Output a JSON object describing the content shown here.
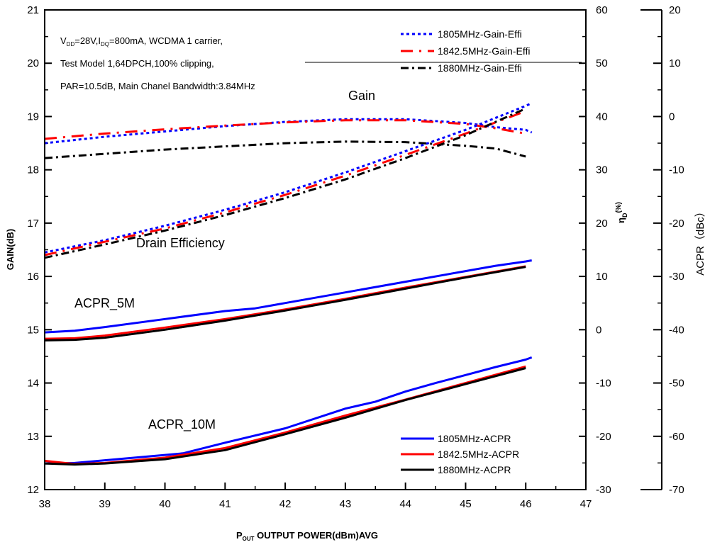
{
  "chart_data": {
    "type": "line",
    "notes": {
      "line1_pre": "V",
      "line1_sub1": "DD",
      "line1_mid": "=28V,I",
      "line1_sub2": "DQ",
      "line1_post": "=800mA, WCDMA 1 carrier,",
      "line2": "Test Model 1,64DPCH,100% clipping,",
      "line3": "PAR=10.5dB, Main Chanel Bandwidth:3.84MHz"
    },
    "annotations": {
      "gain": "Gain",
      "efficiency": "Drain Efficiency",
      "acpr5": "ACPR_5M",
      "acpr10": "ACPR_10M"
    },
    "x_axis": {
      "label_main": "P",
      "label_sub": "OUT",
      "label_rest": " OUTPUT POWER(dBm)AVG",
      "min": 38,
      "max": 47,
      "ticks": [
        "38",
        "39",
        "40",
        "41",
        "42",
        "43",
        "44",
        "45",
        "46",
        "47"
      ]
    },
    "y_left": {
      "label": "GAIN(dB)",
      "min": 12,
      "max": 21,
      "ticks": [
        "12",
        "13",
        "14",
        "15",
        "16",
        "17",
        "18",
        "19",
        "20",
        "21"
      ]
    },
    "y_right1": {
      "label_main": "η",
      "label_sub": "D",
      "label_sup": "(%)",
      "min": -30,
      "max": 60,
      "ticks": [
        "-30",
        "-20",
        "-10",
        "0",
        "10",
        "20",
        "30",
        "40",
        "50",
        "60"
      ]
    },
    "y_right2": {
      "label": "ACPR（dBc）",
      "min": -70,
      "max": 20,
      "ticks": [
        "-70",
        "-60",
        "-50",
        "-40",
        "-30",
        "-20",
        "-10",
        "0",
        "10",
        "20"
      ]
    },
    "legend_top": [
      {
        "name": "1805MHz-Gain-Effi",
        "color": "#0000ff",
        "dash": "dot"
      },
      {
        "name": "1842.5MHz-Gain-Effi",
        "color": "#ff0000",
        "dash": "longdash"
      },
      {
        "name": "1880MHz-Gain-Effi",
        "color": "#000000",
        "dash": "dashdot"
      }
    ],
    "legend_bottom": [
      {
        "name": "1805MHz-ACPR",
        "color": "#0000ff"
      },
      {
        "name": "1842.5MHz-ACPR",
        "color": "#ff0000"
      },
      {
        "name": "1880MHz-ACPR",
        "color": "#000000"
      }
    ],
    "series": [
      {
        "group": "gain",
        "legend": "1805MHz-Gain-Effi",
        "axis": "left",
        "color": "#0000ff",
        "dash": "dot",
        "points": [
          [
            38,
            18.5
          ],
          [
            39,
            18.62
          ],
          [
            40,
            18.72
          ],
          [
            41,
            18.82
          ],
          [
            42,
            18.9
          ],
          [
            43,
            18.95
          ],
          [
            44,
            18.95
          ],
          [
            45,
            18.88
          ],
          [
            45.5,
            18.8
          ],
          [
            46,
            18.75
          ],
          [
            46.1,
            18.7
          ]
        ]
      },
      {
        "group": "gain",
        "legend": "1842.5MHz-Gain-Effi",
        "axis": "left",
        "color": "#ff0000",
        "dash": "longdash",
        "points": [
          [
            38,
            18.58
          ],
          [
            39,
            18.68
          ],
          [
            40,
            18.76
          ],
          [
            41,
            18.83
          ],
          [
            42,
            18.89
          ],
          [
            43,
            18.93
          ],
          [
            44,
            18.93
          ],
          [
            45,
            18.86
          ],
          [
            45.5,
            18.78
          ],
          [
            46,
            18.68
          ]
        ]
      },
      {
        "group": "gain",
        "legend": "1880MHz-Gain-Effi",
        "axis": "left",
        "color": "#000000",
        "dash": "dashdot",
        "points": [
          [
            38,
            18.22
          ],
          [
            39,
            18.3
          ],
          [
            40,
            18.38
          ],
          [
            41,
            18.44
          ],
          [
            42,
            18.5
          ],
          [
            43,
            18.53
          ],
          [
            44,
            18.52
          ],
          [
            45,
            18.45
          ],
          [
            45.5,
            18.4
          ],
          [
            46,
            18.25
          ]
        ]
      },
      {
        "group": "eff",
        "legend": "1805MHz-Gain-Effi",
        "axis": "right1",
        "color": "#0000ff",
        "dash": "dot",
        "points": [
          [
            38,
            14.5
          ],
          [
            39,
            16.8
          ],
          [
            40,
            19.5
          ],
          [
            41,
            22.5
          ],
          [
            42,
            25.8
          ],
          [
            43,
            29.5
          ],
          [
            44,
            33.5
          ],
          [
            45,
            37.5
          ],
          [
            46,
            42
          ],
          [
            46.1,
            42.5
          ]
        ]
      },
      {
        "group": "eff",
        "legend": "1842.5MHz-Gain-Effi",
        "axis": "right1",
        "color": "#ff0000",
        "dash": "longdash",
        "points": [
          [
            38,
            14
          ],
          [
            39,
            16.5
          ],
          [
            40,
            19
          ],
          [
            41,
            22
          ],
          [
            42,
            25.3
          ],
          [
            43,
            28.9
          ],
          [
            44,
            32.8
          ],
          [
            45,
            36.8
          ],
          [
            46,
            41
          ]
        ]
      },
      {
        "group": "eff",
        "legend": "1880MHz-Gain-Effi",
        "axis": "right1",
        "color": "#000000",
        "dash": "dashdot",
        "points": [
          [
            38,
            13.5
          ],
          [
            39,
            16
          ],
          [
            40,
            18.6
          ],
          [
            41,
            21.5
          ],
          [
            42,
            24.7
          ],
          [
            43,
            28.2
          ],
          [
            44,
            32.2
          ],
          [
            45,
            36.5
          ],
          [
            46,
            41.5
          ]
        ]
      },
      {
        "group": "acpr5",
        "legend": "1805MHz-ACPR",
        "axis": "right2",
        "color": "#0000ff",
        "dash": "solid",
        "points": [
          [
            38,
            -40.5
          ],
          [
            38.5,
            -40.2
          ],
          [
            39,
            -39.5
          ],
          [
            40,
            -38
          ],
          [
            41,
            -36.5
          ],
          [
            41.5,
            -36
          ],
          [
            42,
            -35
          ],
          [
            42.5,
            -34
          ],
          [
            43,
            -33
          ],
          [
            44,
            -31
          ],
          [
            45,
            -29
          ],
          [
            45.5,
            -28
          ],
          [
            46,
            -27.2
          ],
          [
            46.1,
            -27
          ]
        ]
      },
      {
        "group": "acpr5",
        "legend": "1842.5MHz-ACPR",
        "axis": "right2",
        "color": "#ff0000",
        "dash": "solid",
        "points": [
          [
            38,
            -41.7
          ],
          [
            38.5,
            -41.6
          ],
          [
            39,
            -41.1
          ],
          [
            40,
            -39.6
          ],
          [
            41,
            -38
          ],
          [
            42,
            -36.2
          ],
          [
            43,
            -34.2
          ],
          [
            44,
            -32.1
          ],
          [
            45,
            -30.1
          ],
          [
            46,
            -28.1
          ]
        ]
      },
      {
        "group": "acpr5",
        "legend": "1880MHz-ACPR",
        "axis": "right2",
        "color": "#000000",
        "dash": "solid",
        "points": [
          [
            38,
            -42
          ],
          [
            38.5,
            -41.9
          ],
          [
            39,
            -41.5
          ],
          [
            40,
            -40
          ],
          [
            41,
            -38.3
          ],
          [
            42,
            -36.4
          ],
          [
            43,
            -34.4
          ],
          [
            44,
            -32.3
          ],
          [
            45,
            -30.2
          ],
          [
            46,
            -28.2
          ]
        ]
      },
      {
        "group": "acpr10",
        "legend": "1805MHz-ACPR",
        "axis": "right2",
        "color": "#0000ff",
        "dash": "solid",
        "points": [
          [
            38,
            -65.1
          ],
          [
            38.5,
            -65
          ],
          [
            39,
            -64.5
          ],
          [
            40,
            -63.5
          ],
          [
            40.3,
            -63.2
          ],
          [
            41,
            -61.2
          ],
          [
            42,
            -58.5
          ],
          [
            43,
            -54.8
          ],
          [
            43.5,
            -53.5
          ],
          [
            44,
            -51.6
          ],
          [
            44.5,
            -50
          ],
          [
            45,
            -48.5
          ],
          [
            45.5,
            -47
          ],
          [
            46,
            -45.6
          ],
          [
            46.1,
            -45.2
          ]
        ]
      },
      {
        "group": "acpr10",
        "legend": "1842.5MHz-ACPR",
        "axis": "right2",
        "color": "#ff0000",
        "dash": "solid",
        "points": [
          [
            38,
            -64.6
          ],
          [
            38.5,
            -65.2
          ],
          [
            39,
            -65
          ],
          [
            40,
            -64
          ],
          [
            41,
            -62.2
          ],
          [
            42,
            -59.3
          ],
          [
            43,
            -56.1
          ],
          [
            44,
            -53.1
          ],
          [
            45,
            -50
          ],
          [
            46,
            -46.9
          ]
        ]
      },
      {
        "group": "acpr10",
        "legend": "1880MHz-ACPR",
        "axis": "right2",
        "color": "#000000",
        "dash": "solid",
        "points": [
          [
            38,
            -65.1
          ],
          [
            38.5,
            -65.3
          ],
          [
            39,
            -65.1
          ],
          [
            40,
            -64.3
          ],
          [
            41,
            -62.6
          ],
          [
            42,
            -59.6
          ],
          [
            43,
            -56.5
          ],
          [
            44,
            -53.2
          ],
          [
            45,
            -50.2
          ],
          [
            46,
            -47.2
          ]
        ]
      }
    ]
  }
}
